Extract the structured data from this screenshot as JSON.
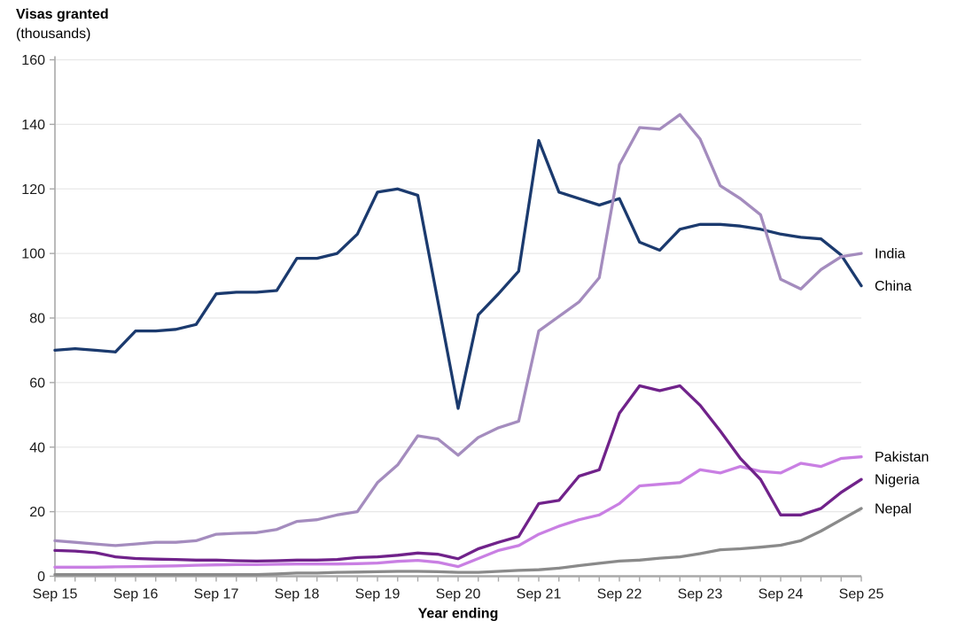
{
  "chart_data": {
    "type": "line",
    "title": "Visas granted",
    "subtitle": "(thousands)",
    "xlabel": "Year ending",
    "x_tick_labels": [
      "Sep 15",
      "Sep 16",
      "Sep 17",
      "Sep 18",
      "Sep 19",
      "Sep 20",
      "Sep 21",
      "Sep 22",
      "Sep 23",
      "Sep 24",
      "Sep 25"
    ],
    "points_per_year": 4,
    "x_range_note": "quarterly points, year ending Sep 2015 to Sep 2025",
    "ylim": [
      0,
      160
    ],
    "y_tick_step": 20,
    "y_tick_labels": [
      0,
      20,
      40,
      60,
      80,
      100,
      120,
      140,
      160
    ],
    "grid": "horizontal",
    "legend_position": "line-end-right",
    "colors": {
      "gridline": "#e8e8e8",
      "axis": "#a9a9a9",
      "text": "#1a1a1a"
    },
    "series": [
      {
        "name": "China",
        "color": "#1b3a6e",
        "values": [
          70,
          70.5,
          70,
          69.5,
          76,
          76,
          76.5,
          78,
          87.5,
          88,
          88,
          88.5,
          98.5,
          98.5,
          100,
          106,
          119,
          120,
          118,
          85,
          52,
          81,
          87.5,
          94.5,
          135,
          119,
          117,
          115,
          117,
          103.5,
          101,
          107.5,
          109,
          109,
          108.5,
          107.5,
          106,
          105,
          104.5,
          99.5,
          90
        ]
      },
      {
        "name": "India",
        "color": "#a48cbe",
        "values": [
          11,
          10.5,
          10,
          9.5,
          10,
          10.5,
          10.5,
          11,
          13,
          13.3,
          13.5,
          14.5,
          17,
          17.5,
          19,
          20,
          29,
          34.5,
          43.5,
          42.5,
          37.5,
          43,
          46,
          48,
          76,
          80.5,
          85,
          92.5,
          127.5,
          139,
          138.5,
          143,
          135.5,
          121,
          117,
          112,
          92,
          89,
          95,
          99,
          100
        ]
      },
      {
        "name": "Pakistan",
        "color": "#c97fe3",
        "values": [
          2.8,
          2.8,
          2.8,
          2.9,
          3,
          3.1,
          3.2,
          3.4,
          3.5,
          3.6,
          3.6,
          3.7,
          3.8,
          3.8,
          3.8,
          3.9,
          4.1,
          4.6,
          4.9,
          4.3,
          3,
          5.5,
          8,
          9.5,
          13,
          15.5,
          17.5,
          19,
          22.5,
          28,
          28.5,
          29,
          33,
          32,
          34,
          32.5,
          32,
          35,
          34,
          36.5,
          37
        ]
      },
      {
        "name": "Nigeria",
        "color": "#70228a",
        "values": [
          8,
          7.8,
          7.3,
          6,
          5.5,
          5.3,
          5.2,
          5,
          5,
          4.8,
          4.7,
          4.8,
          5,
          5,
          5.2,
          5.8,
          6,
          6.5,
          7.2,
          6.8,
          5.4,
          8.5,
          10.5,
          12.3,
          22.5,
          23.5,
          31,
          33,
          50.5,
          59,
          57.5,
          59,
          53,
          45,
          36.5,
          30,
          19,
          19,
          21,
          26,
          30
        ]
      },
      {
        "name": "Nepal",
        "color": "#8a8a8a",
        "values": [
          0.5,
          0.5,
          0.5,
          0.5,
          0.5,
          0.5,
          0.5,
          0.5,
          0.5,
          0.5,
          0.5,
          0.7,
          1,
          1,
          1.2,
          1.3,
          1.4,
          1.5,
          1.5,
          1.4,
          1.2,
          1.2,
          1.5,
          1.8,
          2,
          2.5,
          3.3,
          4,
          4.7,
          5,
          5.6,
          6,
          7,
          8.2,
          8.5,
          9,
          9.6,
          11,
          14,
          17.5,
          21
        ]
      }
    ],
    "line_end_labels": [
      "India",
      "China",
      "Pakistan",
      "Nigeria",
      "Nepal"
    ]
  }
}
